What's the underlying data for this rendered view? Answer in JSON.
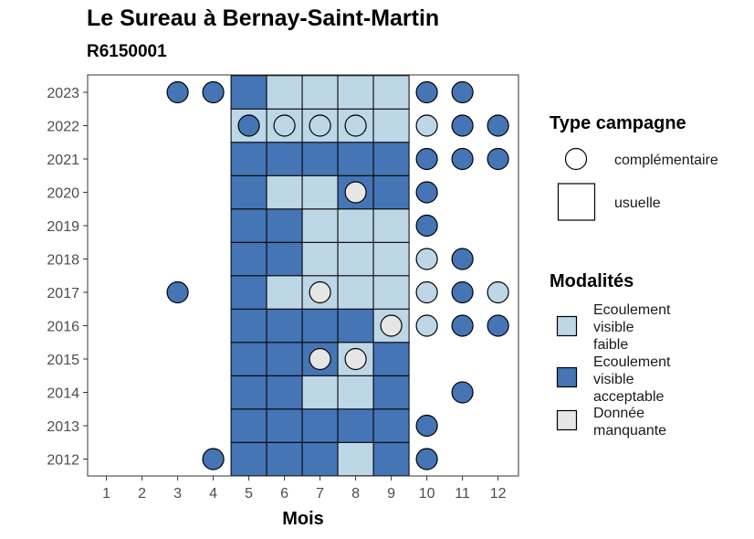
{
  "title": "Le Sureau à Bernay-Saint-Martin",
  "subtitle": "R6150001",
  "colors": {
    "faible": "#BDD7E7",
    "acceptable": "#4575B4",
    "manquante": "#E6E6E6"
  },
  "chart_data": {
    "type": "heatmap",
    "xlabel": "Mois",
    "ylabel": "",
    "x_ticks": [
      "1",
      "2",
      "3",
      "4",
      "5",
      "6",
      "7",
      "8",
      "9",
      "10",
      "11",
      "12"
    ],
    "y_ticks": [
      "2012",
      "2013",
      "2014",
      "2015",
      "2016",
      "2017",
      "2018",
      "2019",
      "2020",
      "2021",
      "2022",
      "2023"
    ],
    "legend_type": {
      "title": "Type campagne",
      "items": [
        {
          "key": "complementaire",
          "label": "complémentaire",
          "shape": "circle"
        },
        {
          "key": "usuelle",
          "label": "usuelle",
          "shape": "square"
        }
      ]
    },
    "legend_modalites": {
      "title": "Modalités",
      "items": [
        {
          "key": "faible",
          "label_lines": [
            "Ecoulement",
            "visible",
            "faible"
          ]
        },
        {
          "key": "acceptable",
          "label_lines": [
            "Ecoulement",
            "visible",
            "acceptable"
          ]
        },
        {
          "key": "manquante",
          "label_lines": [
            "Donnée",
            "manquante"
          ]
        }
      ]
    },
    "cells": {
      "2023": {
        "5": "acceptable",
        "6": "faible",
        "7": "faible",
        "8": "faible",
        "9": "faible"
      },
      "2022": {
        "5": "faible",
        "6": "faible",
        "7": "faible",
        "8": "faible",
        "9": "faible"
      },
      "2021": {
        "5": "acceptable",
        "6": "acceptable",
        "7": "acceptable",
        "8": "acceptable",
        "9": "acceptable"
      },
      "2020": {
        "5": "acceptable",
        "6": "faible",
        "7": "faible",
        "8": "acceptable",
        "9": "acceptable"
      },
      "2019": {
        "5": "acceptable",
        "6": "acceptable",
        "7": "faible",
        "8": "faible",
        "9": "faible"
      },
      "2018": {
        "5": "acceptable",
        "6": "acceptable",
        "7": "faible",
        "8": "faible",
        "9": "faible"
      },
      "2017": {
        "5": "acceptable",
        "6": "faible",
        "7": "faible",
        "8": "faible",
        "9": "faible"
      },
      "2016": {
        "5": "acceptable",
        "6": "acceptable",
        "7": "acceptable",
        "8": "acceptable",
        "9": "faible"
      },
      "2015": {
        "5": "acceptable",
        "6": "acceptable",
        "7": "acceptable",
        "8": "faible",
        "9": "acceptable"
      },
      "2014": {
        "5": "acceptable",
        "6": "acceptable",
        "7": "faible",
        "8": "faible",
        "9": "acceptable"
      },
      "2013": {
        "5": "acceptable",
        "6": "acceptable",
        "7": "acceptable",
        "8": "acceptable",
        "9": "acceptable"
      },
      "2012": {
        "5": "acceptable",
        "6": "acceptable",
        "7": "acceptable",
        "8": "faible",
        "9": "acceptable"
      }
    },
    "points": [
      {
        "year": "2023",
        "month": 3,
        "value": "acceptable"
      },
      {
        "year": "2023",
        "month": 4,
        "value": "acceptable"
      },
      {
        "year": "2023",
        "month": 10,
        "value": "acceptable"
      },
      {
        "year": "2023",
        "month": 11,
        "value": "acceptable"
      },
      {
        "year": "2022",
        "month": 5,
        "value": "acceptable"
      },
      {
        "year": "2022",
        "month": 6,
        "value": "faible"
      },
      {
        "year": "2022",
        "month": 7,
        "value": "faible"
      },
      {
        "year": "2022",
        "month": 8,
        "value": "faible"
      },
      {
        "year": "2022",
        "month": 10,
        "value": "faible"
      },
      {
        "year": "2022",
        "month": 11,
        "value": "acceptable"
      },
      {
        "year": "2022",
        "month": 12,
        "value": "acceptable"
      },
      {
        "year": "2021",
        "month": 10,
        "value": "acceptable"
      },
      {
        "year": "2021",
        "month": 11,
        "value": "acceptable"
      },
      {
        "year": "2021",
        "month": 12,
        "value": "acceptable"
      },
      {
        "year": "2020",
        "month": 8,
        "value": "manquante"
      },
      {
        "year": "2020",
        "month": 10,
        "value": "acceptable"
      },
      {
        "year": "2019",
        "month": 10,
        "value": "acceptable"
      },
      {
        "year": "2018",
        "month": 10,
        "value": "faible"
      },
      {
        "year": "2018",
        "month": 11,
        "value": "acceptable"
      },
      {
        "year": "2017",
        "month": 3,
        "value": "acceptable"
      },
      {
        "year": "2017",
        "month": 7,
        "value": "manquante"
      },
      {
        "year": "2017",
        "month": 10,
        "value": "faible"
      },
      {
        "year": "2017",
        "month": 11,
        "value": "acceptable"
      },
      {
        "year": "2017",
        "month": 12,
        "value": "faible"
      },
      {
        "year": "2016",
        "month": 9,
        "value": "manquante"
      },
      {
        "year": "2016",
        "month": 10,
        "value": "faible"
      },
      {
        "year": "2016",
        "month": 11,
        "value": "acceptable"
      },
      {
        "year": "2016",
        "month": 12,
        "value": "acceptable"
      },
      {
        "year": "2015",
        "month": 7,
        "value": "manquante"
      },
      {
        "year": "2015",
        "month": 8,
        "value": "manquante"
      },
      {
        "year": "2014",
        "month": 11,
        "value": "acceptable"
      },
      {
        "year": "2013",
        "month": 10,
        "value": "acceptable"
      },
      {
        "year": "2012",
        "month": 4,
        "value": "acceptable"
      },
      {
        "year": "2012",
        "month": 10,
        "value": "acceptable"
      }
    ]
  }
}
